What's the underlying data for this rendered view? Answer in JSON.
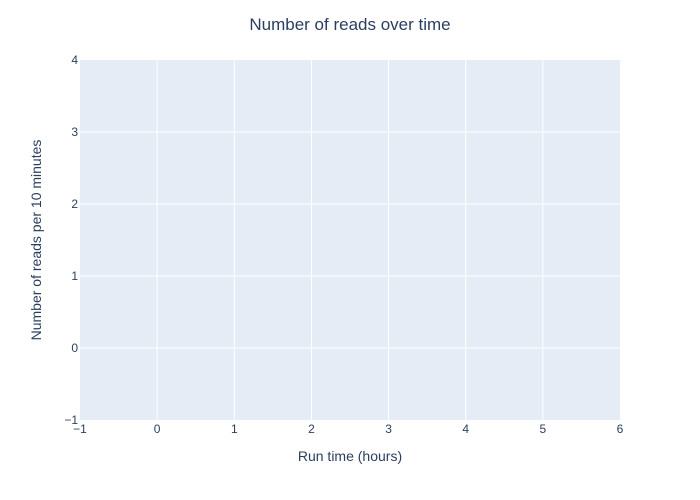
{
  "chart_data": {
    "type": "line",
    "title": "Number of reads over time",
    "xlabel": "Run time (hours)",
    "ylabel": "Number of reads per 10 minutes",
    "xlim": [
      -1,
      6
    ],
    "ylim": [
      -1,
      4
    ],
    "x_ticks": [
      -1,
      0,
      1,
      2,
      3,
      4,
      5,
      6
    ],
    "x_tick_labels": [
      "−1",
      "0",
      "1",
      "2",
      "3",
      "4",
      "5",
      "6"
    ],
    "y_ticks": [
      -1,
      0,
      1,
      2,
      3,
      4
    ],
    "y_tick_labels": [
      "−1",
      "0",
      "1",
      "2",
      "3",
      "4"
    ],
    "series": [],
    "grid": true,
    "colors": {
      "plot_background": "#e5ecf6",
      "grid": "#ffffff",
      "text": "#2a3f5f"
    }
  }
}
